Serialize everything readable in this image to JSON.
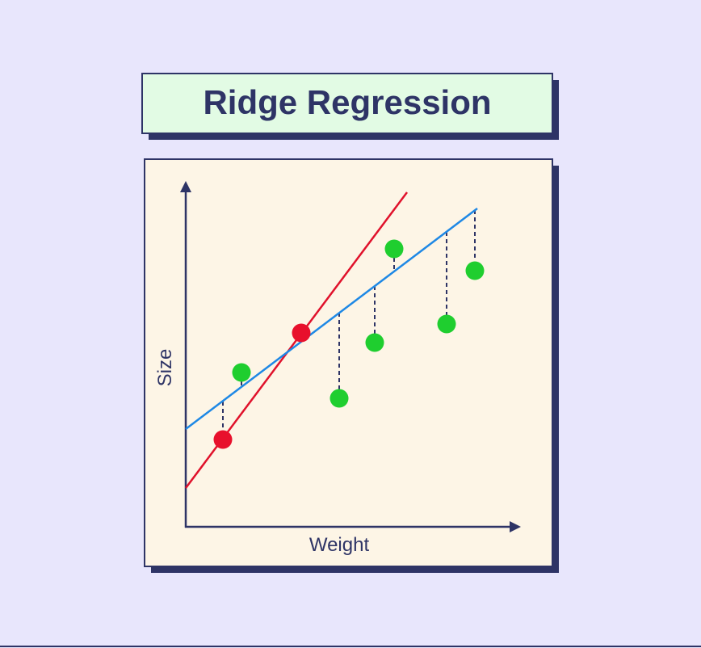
{
  "header": {
    "title": "Ridge Regression"
  },
  "diagram": {
    "y_axis_label": "Size",
    "x_axis_label": "Weight"
  }
}
